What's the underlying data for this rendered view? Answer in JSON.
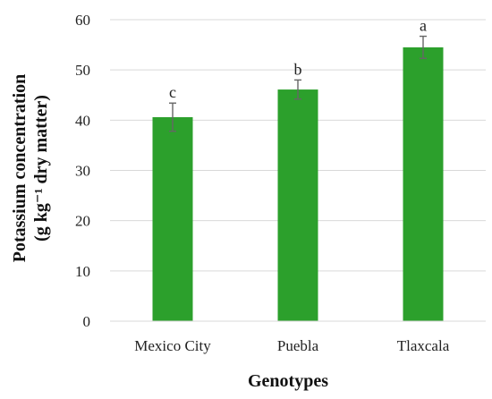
{
  "chart_data": {
    "type": "bar",
    "categories": [
      "Mexico City",
      "Puebla",
      "Tlaxcala"
    ],
    "values": [
      40.6,
      46.1,
      54.5
    ],
    "errors": [
      2.8,
      1.9,
      2.2
    ],
    "significance_letters": [
      "c",
      "b",
      "a"
    ],
    "xlabel": "Genotypes",
    "ylabel_line1": "Potassium concentration",
    "ylabel_line2": "(g kg⁻¹ dry matter)",
    "ylim": [
      0,
      60
    ],
    "yticks": [
      "0",
      "10",
      "20",
      "30",
      "40",
      "50",
      "60"
    ],
    "grid": true,
    "bar_color": "#2ca02c",
    "error_color": "#666666",
    "gridline_color": "#d9d9d9"
  }
}
